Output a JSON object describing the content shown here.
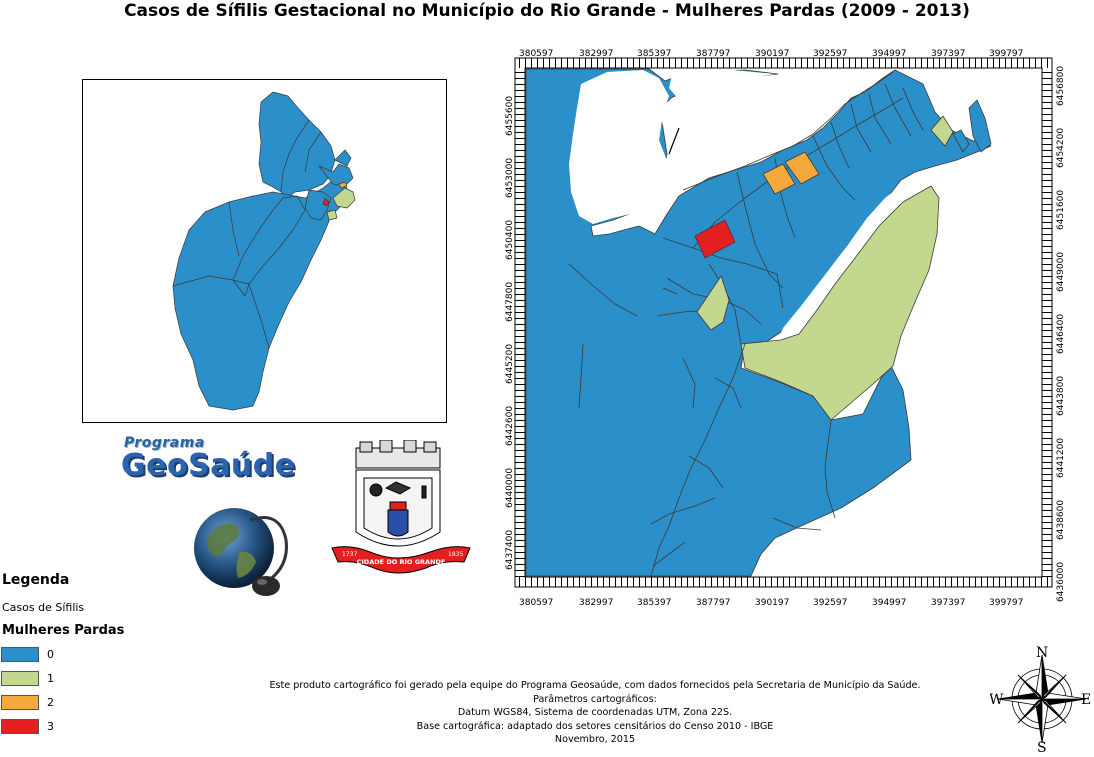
{
  "title": "Casos de Sífilis Gestacional no Município do Rio Grande - Mulheres Pardas (2009 - 2013)",
  "colors": {
    "c0": "#2b8fc9",
    "c1": "#c3d88f",
    "c2": "#f5a83c",
    "c3": "#e41f1f",
    "border": "#3a3a3a"
  },
  "grid": {
    "x_labels": [
      "380597",
      "382997",
      "385397",
      "387797",
      "390197",
      "392597",
      "394997",
      "397397",
      "399797"
    ],
    "y_labels_left": [
      "6455600",
      "6453000",
      "6450400",
      "6447800",
      "6445200",
      "6442600",
      "6440000",
      "6437400"
    ],
    "y_labels_right": [
      "6456800",
      "6454200",
      "6451600",
      "6449000",
      "6446400",
      "6443800",
      "6441200",
      "6438600",
      "6436000"
    ]
  },
  "logos": {
    "programa": "Programa",
    "geosaude": "GeoSaúde",
    "seal_ribbon": "CIDADE DO RIO GRANDE",
    "seal_year_left": "1737",
    "seal_year_right": "1835"
  },
  "legend": {
    "title": "Legenda",
    "subtitle": "Casos de Sífilis",
    "field": "Mulheres Pardas",
    "classes": [
      {
        "label": "0",
        "color": "#2b8fc9"
      },
      {
        "label": "1",
        "color": "#c3d88f"
      },
      {
        "label": "2",
        "color": "#f5a83c"
      },
      {
        "label": "3",
        "color": "#e41f1f"
      }
    ]
  },
  "credits": [
    "Este produto cartográfico foi gerado pela equipe do Programa Geosaúde, com dados fornecidos pela Secretaria de Município da Saúde.",
    "Parâmetros cartográficos:",
    "Datum WGS84, Sistema de coordenadas UTM, Zona 22S.",
    "Base cartográfica: adaptado dos setores censitários do Censo 2010 - IBGE",
    "Novembro, 2015"
  ],
  "compass": {
    "n": "N",
    "s": "S",
    "e": "E",
    "w": "W"
  }
}
